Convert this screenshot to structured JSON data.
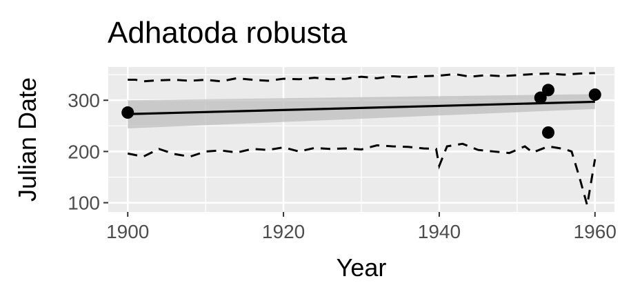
{
  "chart_data": {
    "type": "scatter",
    "title": "Adhatoda robusta",
    "xlabel": "Year",
    "ylabel": "Julian Date",
    "xlim": [
      1897.5,
      1962.5
    ],
    "ylim": [
      82,
      365
    ],
    "x_ticks": [
      1900,
      1920,
      1940,
      1960
    ],
    "y_ticks": [
      100,
      200,
      300
    ],
    "grid": true,
    "legend": "none",
    "colors": {
      "panel": "#ebebeb",
      "grid": "#ffffff",
      "points": "#000000",
      "ribbon": "#bdbdbd",
      "lines": "#000000"
    },
    "points": [
      {
        "x": 1900,
        "y": 276
      },
      {
        "x": 1953,
        "y": 305
      },
      {
        "x": 1954,
        "y": 320
      },
      {
        "x": 1954,
        "y": 237
      },
      {
        "x": 1960,
        "y": 311
      }
    ],
    "trend": {
      "x": [
        1900,
        1960
      ],
      "y": [
        273,
        297
      ],
      "ci_lower": [
        245,
        283
      ],
      "ci_upper": [
        300,
        312
      ]
    },
    "upper_dashed": {
      "x": [
        1900,
        1901,
        1902,
        1904,
        1906,
        1908,
        1910,
        1912,
        1914,
        1916,
        1918,
        1920,
        1922,
        1924,
        1926,
        1928,
        1930,
        1932,
        1934,
        1936,
        1938,
        1940,
        1942,
        1944,
        1946,
        1948,
        1950,
        1952,
        1954,
        1956,
        1958,
        1960
      ],
      "y": [
        340,
        340,
        337,
        339,
        340,
        338,
        340,
        337,
        343,
        340,
        338,
        342,
        341,
        344,
        341,
        342,
        346,
        343,
        347,
        345,
        347,
        348,
        351,
        346,
        349,
        347,
        349,
        351,
        352,
        350,
        352,
        353
      ]
    },
    "lower_dashed": {
      "x": [
        1900,
        1902,
        1904,
        1906,
        1908,
        1910,
        1912,
        1914,
        1916,
        1918,
        1920,
        1922,
        1924,
        1926,
        1928,
        1930,
        1932,
        1934,
        1936,
        1938,
        1939.6,
        1940,
        1941,
        1943,
        1945,
        1947,
        1949,
        1951,
        1952,
        1954,
        1956,
        1957,
        1958,
        1959,
        1960
      ],
      "y": [
        196,
        190,
        205,
        195,
        190,
        200,
        202,
        198,
        205,
        203,
        208,
        200,
        207,
        205,
        206,
        204,
        212,
        210,
        209,
        206,
        205,
        172,
        210,
        215,
        203,
        200,
        197,
        210,
        198,
        210,
        205,
        200,
        150,
        95,
        185
      ]
    }
  }
}
